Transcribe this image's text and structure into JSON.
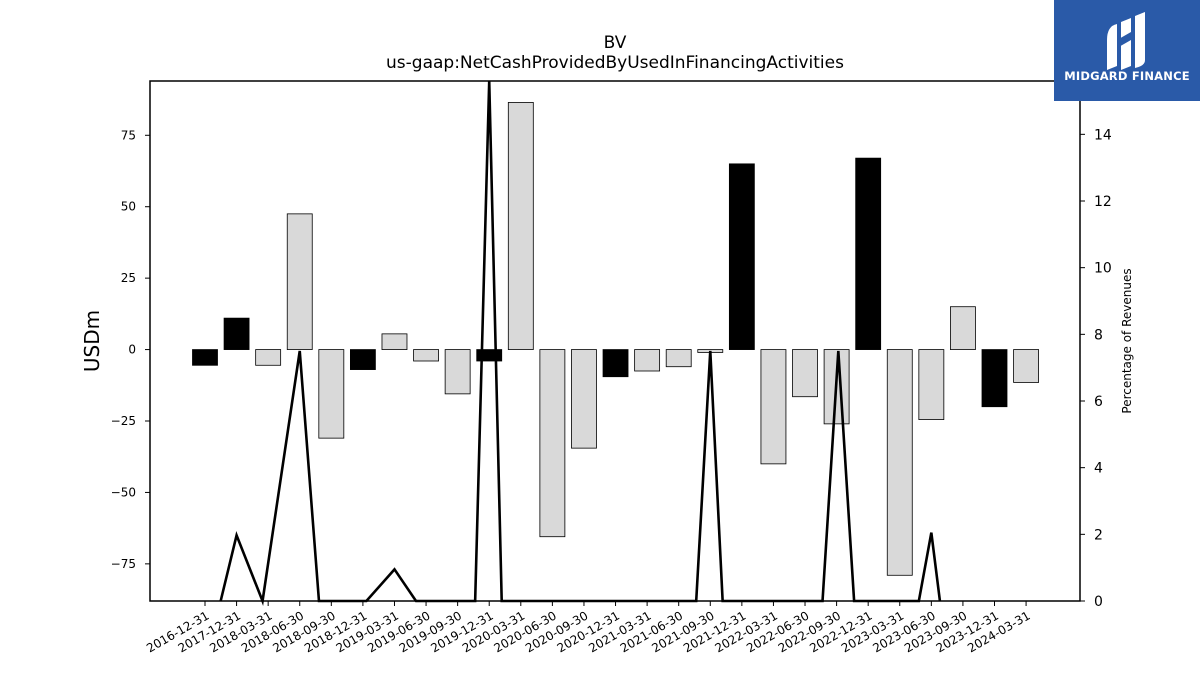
{
  "chart_data": {
    "type": "bar",
    "title": "BV",
    "subtitle": "us-gaap:NetCashProvidedByUsedInFinancingActivities",
    "ylabel": "USDm",
    "y2label": "Percentage of Revenues",
    "ylim": [
      -88,
      94
    ],
    "y2lim": [
      0,
      15.6
    ],
    "yticks": [
      -75,
      -50,
      -25,
      0,
      25,
      50,
      75
    ],
    "y2ticks": [
      0,
      2,
      4,
      6,
      8,
      10,
      12,
      14
    ],
    "categories": [
      "2016-12-31",
      "2017-12-31",
      "2018-03-31",
      "2018-06-30",
      "2018-09-30",
      "2018-12-31",
      "2019-03-31",
      "2019-06-30",
      "2019-09-30",
      "2019-12-31",
      "2020-03-31",
      "2020-06-30",
      "2020-09-30",
      "2020-12-31",
      "2021-03-31",
      "2021-06-30",
      "2021-09-30",
      "2021-12-31",
      "2022-03-31",
      "2022-06-30",
      "2022-09-30",
      "2022-12-31",
      "2023-03-31",
      "2023-06-30",
      "2023-09-30",
      "2023-12-31",
      "2024-03-31"
    ],
    "series": [
      {
        "type": "bar",
        "values": [
          -5.5,
          11,
          -5.5,
          47.5,
          -31,
          -7,
          5.5,
          -4,
          -15.5,
          -4,
          86.5,
          -65.5,
          -34.5,
          -9.5,
          -7.5,
          -6,
          -1,
          65,
          -40,
          -16.5,
          -26,
          67,
          -79,
          -24.5,
          15,
          -20,
          -11.5
        ],
        "highlight": [
          true,
          true,
          false,
          false,
          false,
          true,
          false,
          false,
          false,
          true,
          false,
          false,
          false,
          true,
          false,
          false,
          false,
          true,
          false,
          false,
          false,
          true,
          false,
          false,
          false,
          true,
          false
        ]
      },
      {
        "type": "line",
        "axis": "right",
        "x": [
          "2017-06-30",
          "2017-12-31",
          "2018-03-15",
          "2018-06-30",
          "2018-08-25",
          "2019-01-10",
          "2019-03-31",
          "2019-06-01",
          "2019-11-20",
          "2019-12-31",
          "2020-02-05",
          "2021-08-20",
          "2021-09-30",
          "2021-11-05",
          "2022-08-20",
          "2022-10-05",
          "2022-11-20",
          "2023-05-25",
          "2023-06-30",
          "2023-07-25"
        ],
        "values": [
          0,
          1.97,
          0,
          7.5,
          0,
          0,
          0.95,
          0,
          0,
          15.6,
          0,
          0,
          7.5,
          0,
          0,
          7.5,
          0,
          0,
          2.05,
          0
        ]
      }
    ],
    "colors": {
      "highlight_bar": "#000000",
      "bar": "#d9d9d9",
      "bar_edge": "#000000",
      "line": "#000000"
    }
  },
  "logo": {
    "text": "MIDGARD FINANCE",
    "background": "#2a5aa8"
  }
}
